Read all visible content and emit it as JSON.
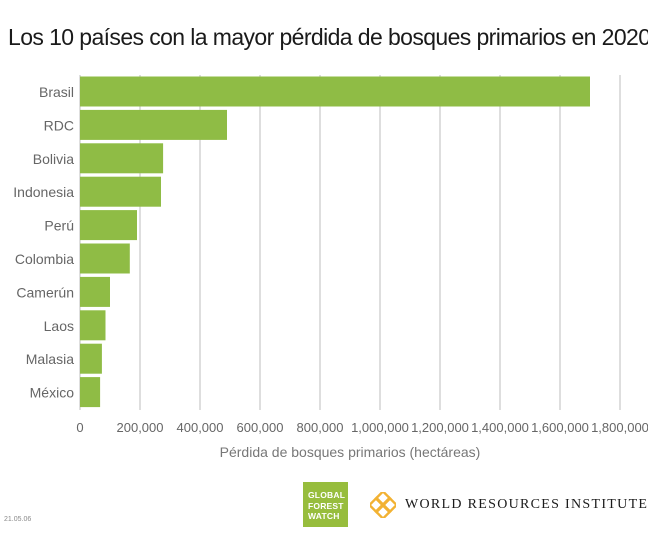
{
  "title": "Los 10 países con la mayor pérdida de bosques primarios en 2020",
  "chart_data": {
    "type": "bar",
    "orientation": "horizontal",
    "title": "Los 10 países con la mayor pérdida de bosques primarios en 2020",
    "xlabel": "Pérdida de bosques primarios (hectáreas)",
    "ylabel": "",
    "categories": [
      "Brasil",
      "RDC",
      "Bolivia",
      "Indonesia",
      "Perú",
      "Colombia",
      "Camerún",
      "Laos",
      "Malasia",
      "México"
    ],
    "values": [
      1700000,
      490000,
      277000,
      270000,
      190000,
      166000,
      100000,
      85000,
      73000,
      67000
    ],
    "xlim": [
      0,
      1800000
    ],
    "ticks": [
      0,
      200000,
      400000,
      600000,
      800000,
      1000000,
      1200000,
      1400000,
      1600000,
      1800000
    ],
    "tick_labels": [
      "0",
      "200,000",
      "400,000",
      "600,000",
      "800,000",
      "1,000,000",
      "1,200,000",
      "1,400,000",
      "1,600,000",
      "1,800,000"
    ],
    "grid": "vertical",
    "bar_color": "#8fbc45",
    "grid_color": "#cccccc"
  },
  "footer": {
    "gfw_logo_lines": [
      "GLOBAL",
      "FOREST",
      "WATCH"
    ],
    "gfw_color": "#97bd3d",
    "wri_name": "WORLD RESOURCES INSTITUTE",
    "wri_icon": "wri-knot-icon",
    "wri_icon_color": "#f2b233",
    "date_stamp": "21.05.06"
  }
}
